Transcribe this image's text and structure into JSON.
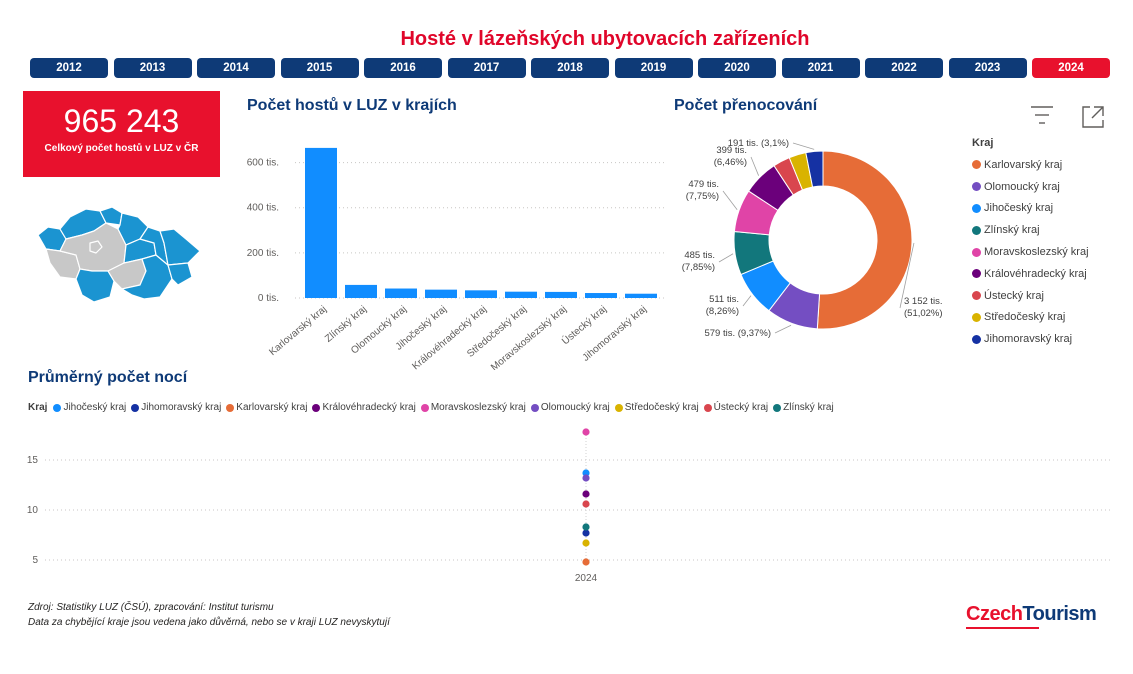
{
  "title": "Hosté v lázeňských ubytovacích zařízeních",
  "years": [
    "2012",
    "2013",
    "2014",
    "2015",
    "2016",
    "2017",
    "2018",
    "2019",
    "2020",
    "2021",
    "2022",
    "2023",
    "2024"
  ],
  "active_year": "2024",
  "kpi": {
    "value": "965 243",
    "label": "Celkový počet hostů v LUZ v ČR"
  },
  "colors": {
    "brand_red": "#e8112d",
    "navy": "#0e3a77",
    "bar_blue": "#118dff",
    "map_blue": "#1b94d1",
    "map_grey": "#c8c8c8"
  },
  "icons": {
    "filter": "filter-icon",
    "focus": "focus-mode-icon"
  },
  "bar_chart": {
    "title": "Počet hostů v LUZ v krajích"
  },
  "donut_chart": {
    "title": "Počet přenocování",
    "legend_title": "Kraj"
  },
  "avg_chart": {
    "title": "Průměrný počet nocí",
    "legend_title": "Kraj"
  },
  "footer": {
    "line1": "Zdroj: Statistiky LUZ (ČSÚ), zpracování: Institut turismu",
    "line2": "Data za chybějící kraje jsou vedena jako důvěrná, nebo se v kraji LUZ nevyskytují"
  },
  "logo": {
    "part1": "Czech",
    "part2": "Tourism"
  },
  "chart_data": [
    {
      "type": "bar",
      "title": "Počet hostů v LUZ v krajích",
      "categories": [
        "Karlovarský kraj",
        "Zlínský kraj",
        "Olomoucký kraj",
        "Jihočeský kraj",
        "Královéhradecký kraj",
        "Středočeský kraj",
        "Moravskoslezský kraj",
        "Ústecký kraj",
        "Jihomoravský kraj"
      ],
      "values": [
        665000,
        58000,
        42000,
        37000,
        34000,
        28000,
        27000,
        22000,
        19000
      ],
      "ytick_labels": [
        "0 tis.",
        "200 tis.",
        "400 tis.",
        "600 tis."
      ],
      "ylim": [
        0,
        700000
      ],
      "grid": true,
      "color": "#118dff"
    },
    {
      "type": "pie",
      "title": "Počet přenocování",
      "labels": [
        "Karlovarský kraj",
        "Olomoucký kraj",
        "Jihočeský kraj",
        "Zlínský kraj",
        "Moravskoslezský kraj",
        "Královéhradecký kraj",
        "Ústecký kraj",
        "Středočeský kraj",
        "Jihomoravský kraj"
      ],
      "values": [
        3152,
        579,
        511,
        485,
        479,
        399,
        191,
        191,
        191
      ],
      "data_labels": [
        [
          "3 152 tis.",
          "(51,02%)"
        ],
        [
          "579 tis. (9,37%)"
        ],
        [
          "511 tis.",
          "(8,26%)"
        ],
        [
          "485 tis.",
          "(7,85%)"
        ],
        [
          "479 tis.",
          "(7,75%)"
        ],
        [
          "399 tis.",
          "(6,46%)"
        ],
        [],
        [],
        [
          "191 tis. (3,1%)"
        ]
      ],
      "colors": [
        "#e66c37",
        "#744ec2",
        "#118dff",
        "#12777c",
        "#e044a7",
        "#6b007b",
        "#d9464e",
        "#d9b300",
        "#1531a3"
      ],
      "legend": "right"
    },
    {
      "type": "scatter",
      "title": "Průměrný počet nocí",
      "x": [
        "2024"
      ],
      "yticks": [
        5,
        10,
        15
      ],
      "ylim": [
        3,
        18
      ],
      "legend": "top",
      "series": [
        {
          "name": "Jihočeský kraj",
          "color": "#118dff",
          "values": [
            13.7
          ]
        },
        {
          "name": "Jihomoravský kraj",
          "color": "#1531a3",
          "values": [
            7.7
          ]
        },
        {
          "name": "Karlovarský kraj",
          "color": "#e66c37",
          "values": [
            4.8
          ]
        },
        {
          "name": "Královéhradecký kraj",
          "color": "#6b007b",
          "values": [
            11.6
          ]
        },
        {
          "name": "Moravskoslezský kraj",
          "color": "#e044a7",
          "values": [
            17.8
          ]
        },
        {
          "name": "Olomoucký kraj",
          "color": "#744ec2",
          "values": [
            13.2
          ]
        },
        {
          "name": "Středočeský kraj",
          "color": "#d9b300",
          "values": [
            6.7
          ]
        },
        {
          "name": "Ústecký kraj",
          "color": "#d9464e",
          "values": [
            10.6
          ]
        },
        {
          "name": "Zlínský kraj",
          "color": "#12777c",
          "values": [
            8.3
          ]
        }
      ]
    }
  ]
}
